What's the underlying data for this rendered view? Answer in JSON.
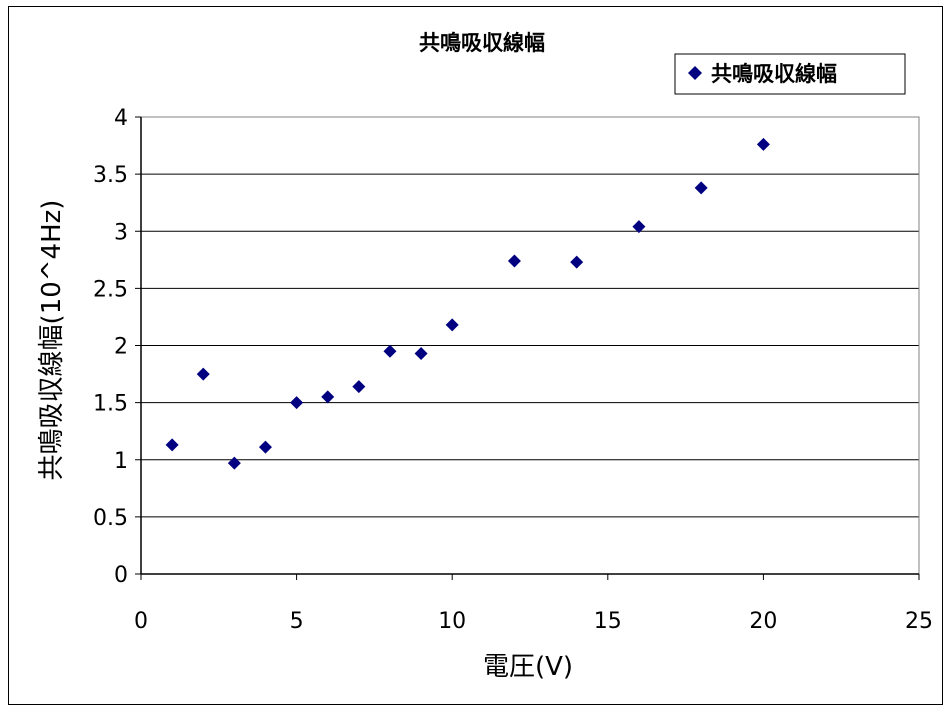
{
  "chart_data": {
    "type": "scatter",
    "title": "共鳴吸収線幅",
    "xlabel": "電圧(V)",
    "ylabel": "共鳴吸収線幅(10^4Hz)",
    "xlim": [
      0,
      25
    ],
    "ylim": [
      0,
      4
    ],
    "x_ticks": [
      "0",
      "5",
      "10",
      "15",
      "20",
      "25"
    ],
    "y_ticks": [
      "0",
      "0.5",
      "1",
      "1.5",
      "2",
      "2.5",
      "3",
      "3.5",
      "4"
    ],
    "grid": "horizontal",
    "legend_position": "top-right",
    "series": [
      {
        "name": "共鳴吸収線幅",
        "color": "#000080",
        "marker": "diamond",
        "points": [
          {
            "x": 1,
            "y": 1.13
          },
          {
            "x": 2,
            "y": 1.75
          },
          {
            "x": 3,
            "y": 0.97
          },
          {
            "x": 4,
            "y": 1.11
          },
          {
            "x": 5,
            "y": 1.5
          },
          {
            "x": 6,
            "y": 1.55
          },
          {
            "x": 7,
            "y": 1.64
          },
          {
            "x": 8,
            "y": 1.95
          },
          {
            "x": 9,
            "y": 1.93
          },
          {
            "x": 10,
            "y": 2.18
          },
          {
            "x": 12,
            "y": 2.74
          },
          {
            "x": 14,
            "y": 2.73
          },
          {
            "x": 16,
            "y": 3.04
          },
          {
            "x": 18,
            "y": 3.38
          },
          {
            "x": 20,
            "y": 3.76
          }
        ]
      }
    ]
  }
}
